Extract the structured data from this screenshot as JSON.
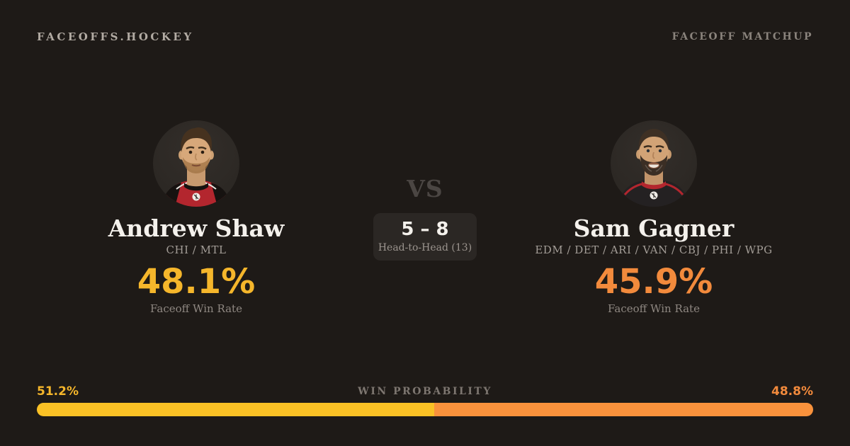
{
  "header": {
    "brand": "FACEOFFS.HOCKEY",
    "page_label": "FACEOFF MATCHUP"
  },
  "players": {
    "left": {
      "name": "Andrew Shaw",
      "teams": "CHI / MTL",
      "win_rate": "48.1%",
      "win_rate_label": "Faceoff Win Rate",
      "accent": "#f5b62b"
    },
    "right": {
      "name": "Sam Gagner",
      "teams": "EDM / DET / ARI / VAN / CBJ / PHI / WPG",
      "win_rate": "45.9%",
      "win_rate_label": "Faceoff Win Rate",
      "accent": "#f28a3c"
    }
  },
  "matchup": {
    "vs_label": "VS",
    "head_to_head_score": "5 – 8",
    "head_to_head_label": "Head-to-Head (13)"
  },
  "win_probability": {
    "label": "WIN PROBABILITY",
    "left_pct_label": "51.2%",
    "right_pct_label": "48.8%",
    "left_value": 51.2,
    "right_value": 48.8,
    "left_color": "#fac125",
    "right_color": "#f9923c"
  },
  "colors": {
    "background": "#1e1a17",
    "text_primary": "#f4f1ec",
    "text_muted": "#8e8781"
  }
}
